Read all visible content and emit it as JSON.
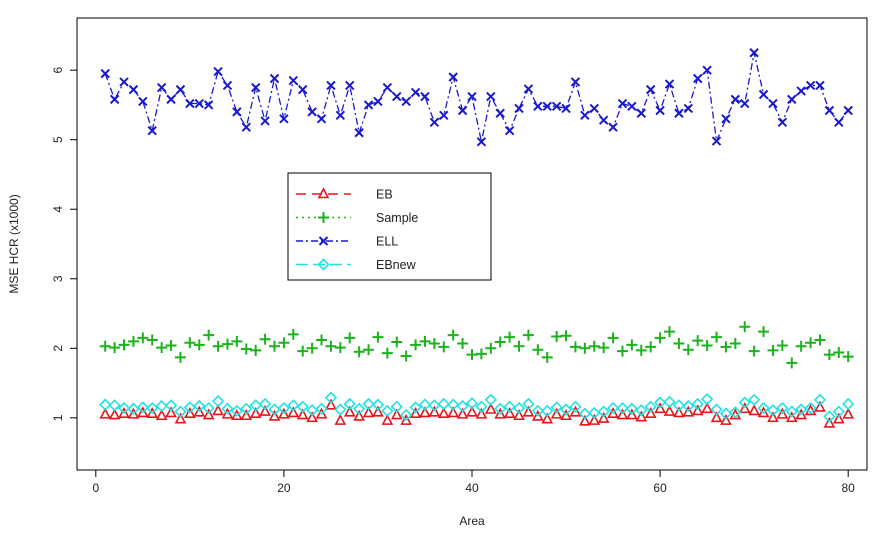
{
  "chart_data": {
    "type": "line",
    "title": "",
    "xlabel": "Area",
    "ylabel": "MSE HCR (x1000)",
    "xlim": [
      -2,
      82
    ],
    "ylim": [
      0.25,
      6.75
    ],
    "xticks": [
      "0",
      "20",
      "40",
      "60",
      "80"
    ],
    "yticks": [
      "1",
      "2",
      "3",
      "4",
      "5",
      "6"
    ],
    "legend_position": "center-left",
    "grid": false,
    "x": [
      1,
      2,
      3,
      4,
      5,
      6,
      7,
      8,
      9,
      10,
      11,
      12,
      13,
      14,
      15,
      16,
      17,
      18,
      19,
      20,
      21,
      22,
      23,
      24,
      25,
      26,
      27,
      28,
      29,
      30,
      31,
      32,
      33,
      34,
      35,
      36,
      37,
      38,
      39,
      40,
      41,
      42,
      43,
      44,
      45,
      46,
      47,
      48,
      49,
      50,
      51,
      52,
      53,
      54,
      55,
      56,
      57,
      58,
      59,
      60,
      61,
      62,
      63,
      64,
      65,
      66,
      67,
      68,
      69,
      70,
      71,
      72,
      73,
      74,
      75,
      76,
      77,
      78,
      79,
      80
    ],
    "series": [
      {
        "name": "EB",
        "color": "#e8131b",
        "dash": "10,6",
        "marker": "triangle",
        "show_lines": false,
        "values": [
          1.05,
          1.04,
          1.06,
          1.05,
          1.07,
          1.06,
          1.03,
          1.07,
          0.98,
          1.06,
          1.08,
          1.04,
          1.1,
          1.05,
          1.03,
          1.03,
          1.06,
          1.09,
          1.02,
          1.05,
          1.07,
          1.04,
          1.0,
          1.05,
          1.18,
          0.96,
          1.08,
          1.02,
          1.07,
          1.08,
          0.96,
          1.04,
          0.96,
          1.06,
          1.07,
          1.08,
          1.06,
          1.07,
          1.05,
          1.08,
          1.05,
          1.12,
          1.05,
          1.06,
          1.03,
          1.08,
          1.02,
          0.98,
          1.05,
          1.03,
          1.08,
          0.95,
          0.96,
          0.99,
          1.06,
          1.04,
          1.04,
          1.01,
          1.06,
          1.13,
          1.09,
          1.07,
          1.08,
          1.1,
          1.13,
          1.0,
          0.96,
          1.04,
          1.13,
          1.1,
          1.07,
          1.0,
          1.05,
          1.0,
          1.04,
          1.1,
          1.15,
          0.92,
          0.98,
          1.05
        ]
      },
      {
        "name": "Sample",
        "color": "#1bb21b",
        "dash": "2,4",
        "marker": "plus",
        "show_lines": false,
        "values": [
          2.03,
          2.01,
          2.05,
          2.1,
          2.15,
          2.12,
          2.01,
          2.04,
          1.87,
          2.08,
          2.05,
          2.19,
          2.03,
          2.06,
          2.1,
          1.99,
          1.97,
          2.13,
          2.03,
          2.08,
          2.2,
          1.96,
          2.0,
          2.12,
          2.03,
          2.01,
          2.15,
          1.95,
          1.98,
          2.16,
          1.93,
          2.09,
          1.89,
          2.05,
          2.1,
          2.07,
          2.02,
          2.19,
          2.07,
          1.91,
          1.92,
          2.0,
          2.09,
          2.16,
          2.03,
          2.19,
          1.98,
          1.87,
          2.17,
          2.18,
          2.02,
          2.0,
          2.03,
          2.01,
          2.15,
          1.96,
          2.05,
          1.97,
          2.02,
          2.15,
          2.24,
          2.07,
          1.98,
          2.11,
          2.04,
          2.16,
          2.02,
          2.07,
          2.31,
          1.96,
          2.24,
          1.97,
          2.04,
          1.79,
          2.03,
          2.08,
          2.12,
          1.91,
          1.94,
          1.88
        ]
      },
      {
        "name": "ELL",
        "color": "#1a1acd",
        "dash": "7,3,2,3",
        "marker": "x",
        "show_lines": true,
        "values": [
          5.95,
          5.58,
          5.83,
          5.72,
          5.55,
          5.13,
          5.75,
          5.58,
          5.72,
          5.52,
          5.52,
          5.5,
          5.98,
          5.78,
          5.4,
          5.18,
          5.75,
          5.27,
          5.88,
          5.3,
          5.85,
          5.72,
          5.4,
          5.3,
          5.78,
          5.35,
          5.78,
          5.1,
          5.5,
          5.55,
          5.75,
          5.62,
          5.55,
          5.68,
          5.62,
          5.25,
          5.35,
          5.9,
          5.42,
          5.62,
          4.97,
          5.62,
          5.38,
          5.13,
          5.45,
          5.73,
          5.48,
          5.48,
          5.48,
          5.45,
          5.83,
          5.35,
          5.45,
          5.28,
          5.18,
          5.52,
          5.48,
          5.38,
          5.72,
          5.42,
          5.8,
          5.38,
          5.45,
          5.88,
          6.0,
          4.98,
          5.3,
          5.58,
          5.52,
          6.25,
          5.65,
          5.52,
          5.25,
          5.58,
          5.7,
          5.78,
          5.78,
          5.42,
          5.25,
          5.42
        ]
      },
      {
        "name": "EBnew",
        "color": "#1fe3e3",
        "dash": "12,5",
        "marker": "diamond",
        "show_lines": false,
        "values": [
          1.19,
          1.18,
          1.14,
          1.13,
          1.15,
          1.14,
          1.17,
          1.18,
          1.09,
          1.15,
          1.17,
          1.14,
          1.24,
          1.13,
          1.1,
          1.13,
          1.18,
          1.2,
          1.12,
          1.14,
          1.18,
          1.16,
          1.11,
          1.13,
          1.29,
          1.12,
          1.2,
          1.13,
          1.2,
          1.19,
          1.1,
          1.16,
          1.04,
          1.15,
          1.19,
          1.18,
          1.2,
          1.19,
          1.17,
          1.21,
          1.16,
          1.26,
          1.13,
          1.16,
          1.14,
          1.2,
          1.1,
          1.1,
          1.15,
          1.12,
          1.16,
          1.06,
          1.07,
          1.09,
          1.14,
          1.14,
          1.13,
          1.11,
          1.16,
          1.22,
          1.23,
          1.18,
          1.17,
          1.2,
          1.27,
          1.12,
          1.06,
          1.08,
          1.22,
          1.26,
          1.14,
          1.11,
          1.14,
          1.09,
          1.12,
          1.14,
          1.26,
          1.02,
          1.09,
          1.2
        ]
      }
    ]
  }
}
